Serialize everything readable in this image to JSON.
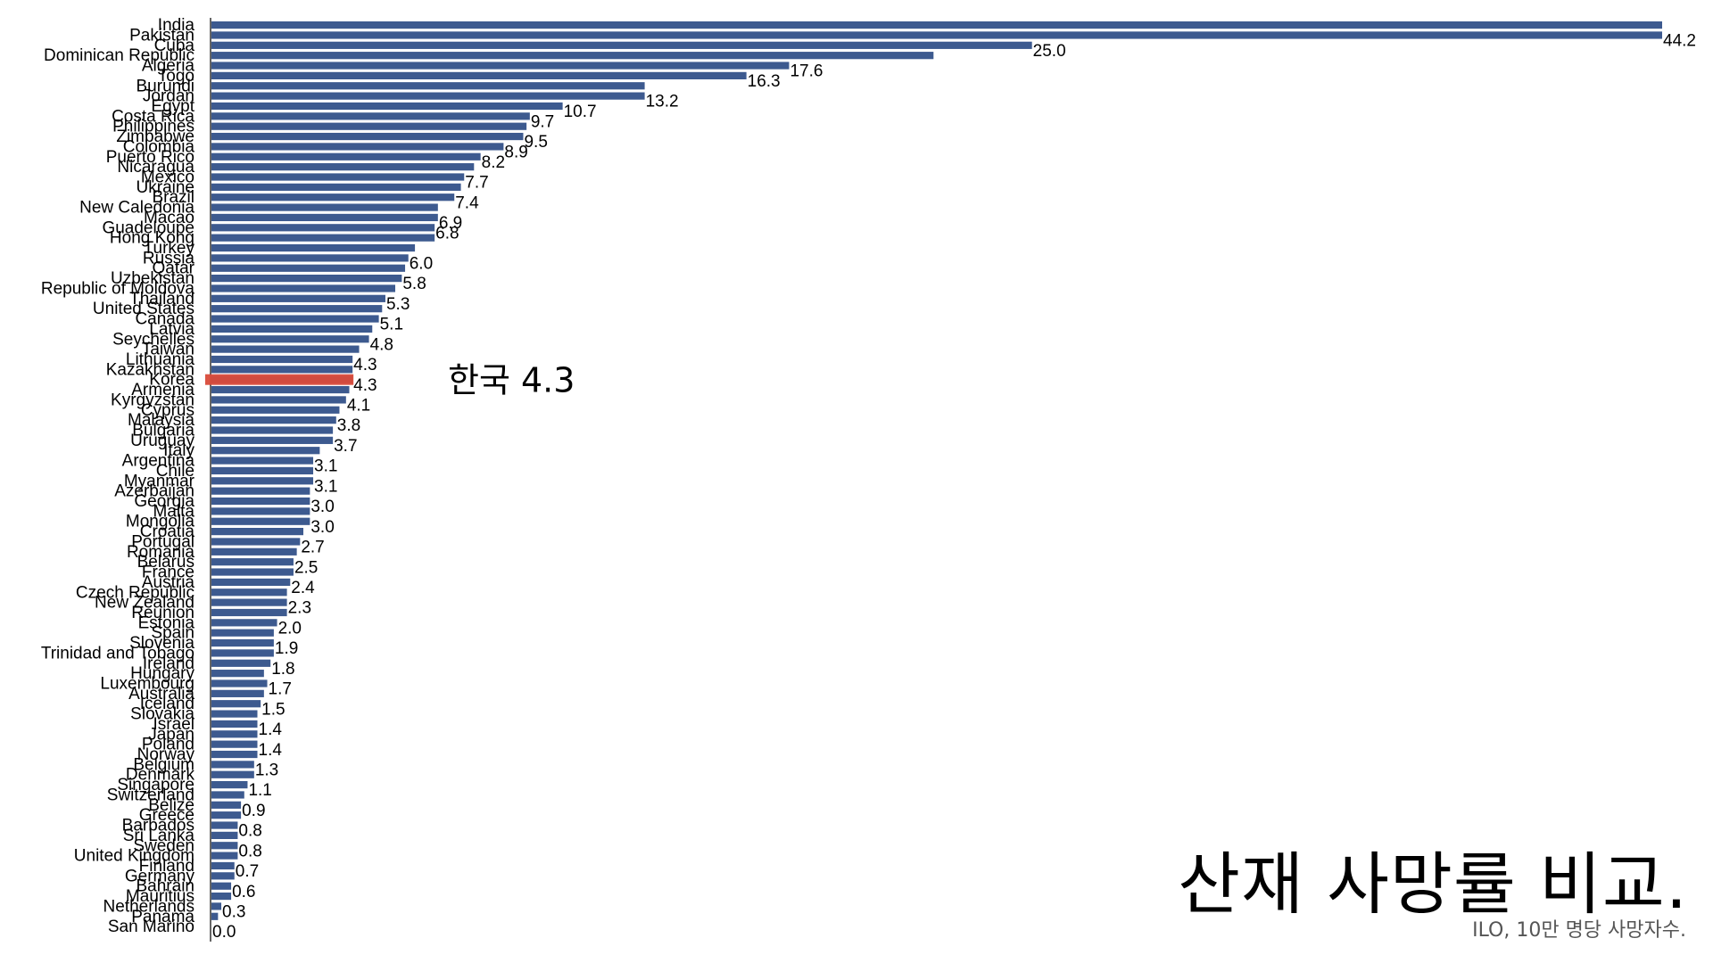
{
  "chart_data": {
    "type": "bar",
    "orientation": "horizontal",
    "title": "산재 사망률 비교.",
    "subtitle": "ILO, 10만 명당 사망자수.",
    "colors": {
      "bar": "#3d5a8f",
      "highlight": "#d94b3a"
    },
    "highlight": {
      "category": "Korea",
      "label": "한국 4.3"
    },
    "categories": [
      "India",
      "Pakistan",
      "Cuba",
      "Dominican Republic",
      "Algeria",
      "Togo",
      "Burundi",
      "Jordan",
      "Egypt",
      "Costa Rica",
      "Philippines",
      "Zimbabwe",
      "Colombia",
      "Puerto Rico",
      "Nicaragua",
      "Mexico",
      "Ukraine",
      "Brazil",
      "New Caledonia",
      "Macao",
      "Guadeloupe",
      "Hong Kong",
      "Turkey",
      "Russia",
      "Qatar",
      "Uzbekistan",
      "Republic of Moldova",
      "Thailand",
      "United States",
      "Canada",
      "Latvia",
      "Seychelles",
      "Taiwan",
      "Lithuania",
      "Kazakhstan",
      "Korea",
      "Armenia",
      "Kyrgyzstan",
      "Cyprus",
      "Malaysia",
      "Bulgaria",
      "Uruguay",
      "Italy",
      "Argentina",
      "Chile",
      "Myanmar",
      "Azerbaijan",
      "Georgia",
      "Malta",
      "Mongolia",
      "Croatia",
      "Portugal",
      "Romania",
      "Belarus",
      "France",
      "Austria",
      "Czech Republic",
      "New Zealand",
      "Reunion",
      "Estonia",
      "Spain",
      "Slovenia",
      "Trinidad and Tobago",
      "Ireland",
      "Hungary",
      "Luxembourg",
      "Australia",
      "Iceland",
      "Slovakia",
      "Israel",
      "Japan",
      "Poland",
      "Norway",
      "Belgium",
      "Denmark",
      "Singapore",
      "Switzerland",
      "Belize",
      "Greece",
      "Barbados",
      "Sri Lanka",
      "Sweden",
      "United Kingdom",
      "Finland",
      "Germany",
      "Bahrain",
      "Mauritius",
      "Netherlands",
      "Panama",
      "San Marino"
    ],
    "values": [
      44.2,
      44.2,
      25.0,
      22.0,
      17.6,
      16.3,
      13.2,
      13.2,
      10.7,
      9.7,
      9.6,
      9.5,
      8.9,
      8.2,
      8.0,
      7.7,
      7.6,
      7.4,
      6.9,
      6.9,
      6.8,
      6.8,
      6.2,
      6.0,
      5.9,
      5.8,
      5.6,
      5.3,
      5.2,
      5.1,
      4.9,
      4.8,
      4.5,
      4.3,
      4.3,
      4.3,
      4.2,
      4.1,
      3.9,
      3.8,
      3.7,
      3.7,
      3.3,
      3.1,
      3.1,
      3.1,
      3.0,
      3.0,
      3.0,
      3.0,
      2.8,
      2.7,
      2.6,
      2.5,
      2.5,
      2.4,
      2.3,
      2.3,
      2.3,
      2.0,
      1.9,
      1.9,
      1.9,
      1.8,
      1.6,
      1.7,
      1.6,
      1.5,
      1.4,
      1.4,
      1.4,
      1.4,
      1.4,
      1.3,
      1.3,
      1.1,
      1.0,
      0.9,
      0.9,
      0.8,
      0.8,
      0.8,
      0.8,
      0.7,
      0.7,
      0.6,
      0.6,
      0.3,
      0.2,
      0.0
    ],
    "value_labels": [
      null,
      "44.2",
      "25.0",
      null,
      "17.6",
      "16.3",
      null,
      "13.2",
      "10.7",
      "9.7",
      null,
      "9.5",
      "8.9",
      "8.2",
      null,
      "7.7",
      null,
      "7.4",
      null,
      "6.9",
      "6.8",
      null,
      null,
      "6.0",
      null,
      "5.8",
      null,
      "5.3",
      null,
      "5.1",
      null,
      "4.8",
      null,
      "4.3",
      null,
      "4.3",
      null,
      "4.1",
      null,
      "3.8",
      null,
      "3.7",
      null,
      "3.1",
      null,
      "3.1",
      null,
      "3.0",
      null,
      "3.0",
      null,
      "2.7",
      null,
      "2.5",
      null,
      "2.4",
      null,
      "2.3",
      null,
      "2.0",
      null,
      "1.9",
      null,
      "1.8",
      null,
      "1.7",
      null,
      "1.5",
      null,
      "1.4",
      null,
      "1.4",
      null,
      "1.3",
      null,
      "1.1",
      null,
      "0.9",
      null,
      "0.8",
      null,
      "0.8",
      null,
      "0.7",
      null,
      "0.6",
      null,
      "0.3",
      null,
      "0.0"
    ],
    "xlim": [
      0,
      44.2
    ]
  }
}
